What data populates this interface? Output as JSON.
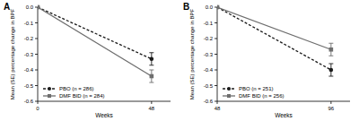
{
  "chart_data": [
    {
      "type": "line",
      "title": "A",
      "x_label": "Weeks",
      "y_label": "Mean (SE) percentage change in BPF",
      "x": [
        0,
        48
      ],
      "xlim": [
        0,
        56
      ],
      "xticks": [
        0,
        48
      ],
      "ylim": [
        -0.6,
        0
      ],
      "yticks": [
        {
          "value": 0,
          "label": "0.0"
        },
        {
          "value": -0.1,
          "label": "-0.1"
        },
        {
          "value": -0.2,
          "label": "-0.2"
        },
        {
          "value": -0.3,
          "label": "-0.3"
        },
        {
          "value": -0.4,
          "label": "-0.4"
        },
        {
          "value": -0.5,
          "label": "-0.5"
        },
        {
          "value": -0.6,
          "label": "-0.6"
        }
      ],
      "legend": "lower left",
      "series": [
        {
          "name": "PBO (n = 286)",
          "color": "#1a1a1a",
          "marker": "circle",
          "line_style": "dashed",
          "values": [
            0,
            -0.33
          ],
          "errors": [
            0,
            0.04
          ]
        },
        {
          "name": "DMF BID (n = 284)",
          "color": "#6e6e6e",
          "marker": "square",
          "line_style": "solid",
          "values": [
            0,
            -0.44
          ],
          "errors": [
            0,
            0.04
          ]
        }
      ]
    },
    {
      "type": "line",
      "title": "B",
      "x_label": "Weeks",
      "y_label": "Mean (SE) percentage change in BPF",
      "x": [
        48,
        96
      ],
      "xlim": [
        48,
        104
      ],
      "xticks": [
        48,
        96
      ],
      "ylim": [
        -0.6,
        0
      ],
      "yticks": [
        {
          "value": 0,
          "label": "0.0"
        },
        {
          "value": -0.1,
          "label": "-0.1"
        },
        {
          "value": -0.2,
          "label": "-0.2"
        },
        {
          "value": -0.3,
          "label": "-0.3"
        },
        {
          "value": -0.4,
          "label": "-0.4"
        },
        {
          "value": -0.5,
          "label": "-0.5"
        },
        {
          "value": -0.6,
          "label": "-0.6"
        }
      ],
      "legend": "lower left",
      "series": [
        {
          "name": "PBO (n = 251)",
          "color": "#1a1a1a",
          "marker": "circle",
          "line_style": "dashed",
          "values": [
            0,
            -0.4
          ],
          "errors": [
            0,
            0.04
          ]
        },
        {
          "name": "DMF BID (n = 256)",
          "color": "#6e6e6e",
          "marker": "square",
          "line_style": "solid",
          "values": [
            0,
            -0.27
          ],
          "errors": [
            0,
            0.04
          ]
        }
      ]
    }
  ]
}
